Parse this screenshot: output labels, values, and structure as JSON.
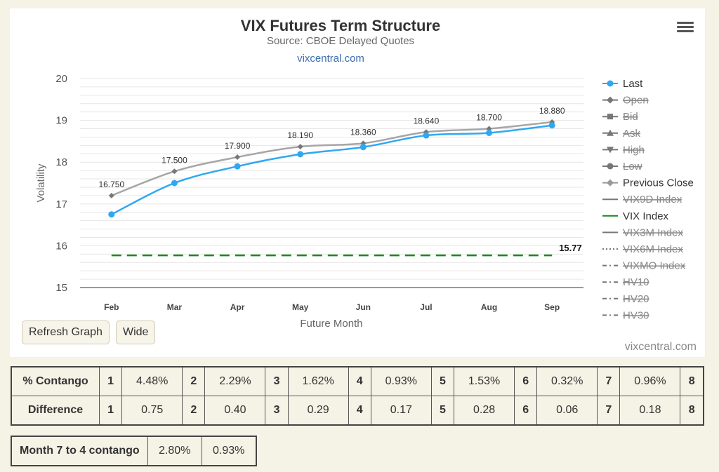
{
  "chart_data": {
    "type": "line",
    "title": "VIX Futures Term Structure",
    "subtitle": "Source: CBOE Delayed Quotes",
    "link": "vixcentral.com",
    "xlabel": "Future Month",
    "ylabel": "Volatility",
    "categories": [
      "Feb",
      "Mar",
      "Apr",
      "May",
      "Jun",
      "Jul",
      "Aug",
      "Sep"
    ],
    "ylim": [
      15,
      20
    ],
    "yticks": [
      15,
      16,
      17,
      18,
      19,
      20
    ],
    "grid": true,
    "legend_position": "right",
    "series": [
      {
        "name": "Last",
        "values": [
          16.75,
          17.5,
          17.9,
          18.19,
          18.36,
          18.64,
          18.7,
          18.88
        ],
        "labels": [
          "16.750",
          "17.500",
          "17.900",
          "18.190",
          "18.360",
          "18.640",
          "18.700",
          "18.880"
        ],
        "color": "#2fa8f2"
      },
      {
        "name": "Previous Close",
        "values": [
          17.2,
          17.78,
          18.12,
          18.37,
          18.45,
          18.72,
          18.8,
          18.96
        ],
        "color": "#a6a6a6"
      },
      {
        "name": "VIX Index",
        "values": [
          15.77,
          15.77,
          15.77,
          15.77,
          15.77,
          15.77,
          15.77,
          15.77
        ],
        "end_label": "15.77",
        "color": "#1a8a1a"
      }
    ],
    "legend": [
      {
        "name": "Last",
        "style": "circle",
        "active": true
      },
      {
        "name": "Open",
        "style": "diamond",
        "active": false
      },
      {
        "name": "Bid",
        "style": "square",
        "active": false
      },
      {
        "name": "Ask",
        "style": "triangle",
        "active": false
      },
      {
        "name": "High",
        "style": "triangle-down",
        "active": false
      },
      {
        "name": "Low",
        "style": "circle",
        "active": false
      },
      {
        "name": "Previous Close",
        "style": "diamond",
        "active": true
      },
      {
        "name": "VIX9D Index",
        "style": "solid",
        "active": false
      },
      {
        "name": "VIX Index",
        "style": "solid",
        "active": true
      },
      {
        "name": "VIX3M Index",
        "style": "solid",
        "active": false
      },
      {
        "name": "VIX6M Index",
        "style": "dot",
        "active": false
      },
      {
        "name": "VIXMO Index",
        "style": "dashdot",
        "active": false
      },
      {
        "name": "HV10",
        "style": "dashdot",
        "active": false
      },
      {
        "name": "HV20",
        "style": "dashdot",
        "active": false
      },
      {
        "name": "HV30",
        "style": "dashdot",
        "active": false
      }
    ]
  },
  "buttons": {
    "refresh": "Refresh Graph",
    "wide": "Wide"
  },
  "credit": "vixcentral.com",
  "contango": {
    "row1_label": "% Contango",
    "row2_label": "Difference",
    "cols": [
      "1",
      "2",
      "3",
      "4",
      "5",
      "6",
      "7",
      "8"
    ],
    "percent": [
      "4.48%",
      "2.29%",
      "1.62%",
      "0.93%",
      "1.53%",
      "0.32%",
      "0.96%"
    ],
    "difference": [
      "0.75",
      "0.40",
      "0.29",
      "0.17",
      "0.28",
      "0.06",
      "0.18"
    ]
  },
  "month_contango": {
    "label": "Month 7 to 4 contango",
    "percent": "2.80%",
    "value": "0.93%"
  },
  "colors": {
    "background": "#f5f2e6",
    "last": "#2fa8f2",
    "previous_close": "#a6a6a6",
    "vix": "#1a8a1a",
    "hidden": "#888888"
  }
}
